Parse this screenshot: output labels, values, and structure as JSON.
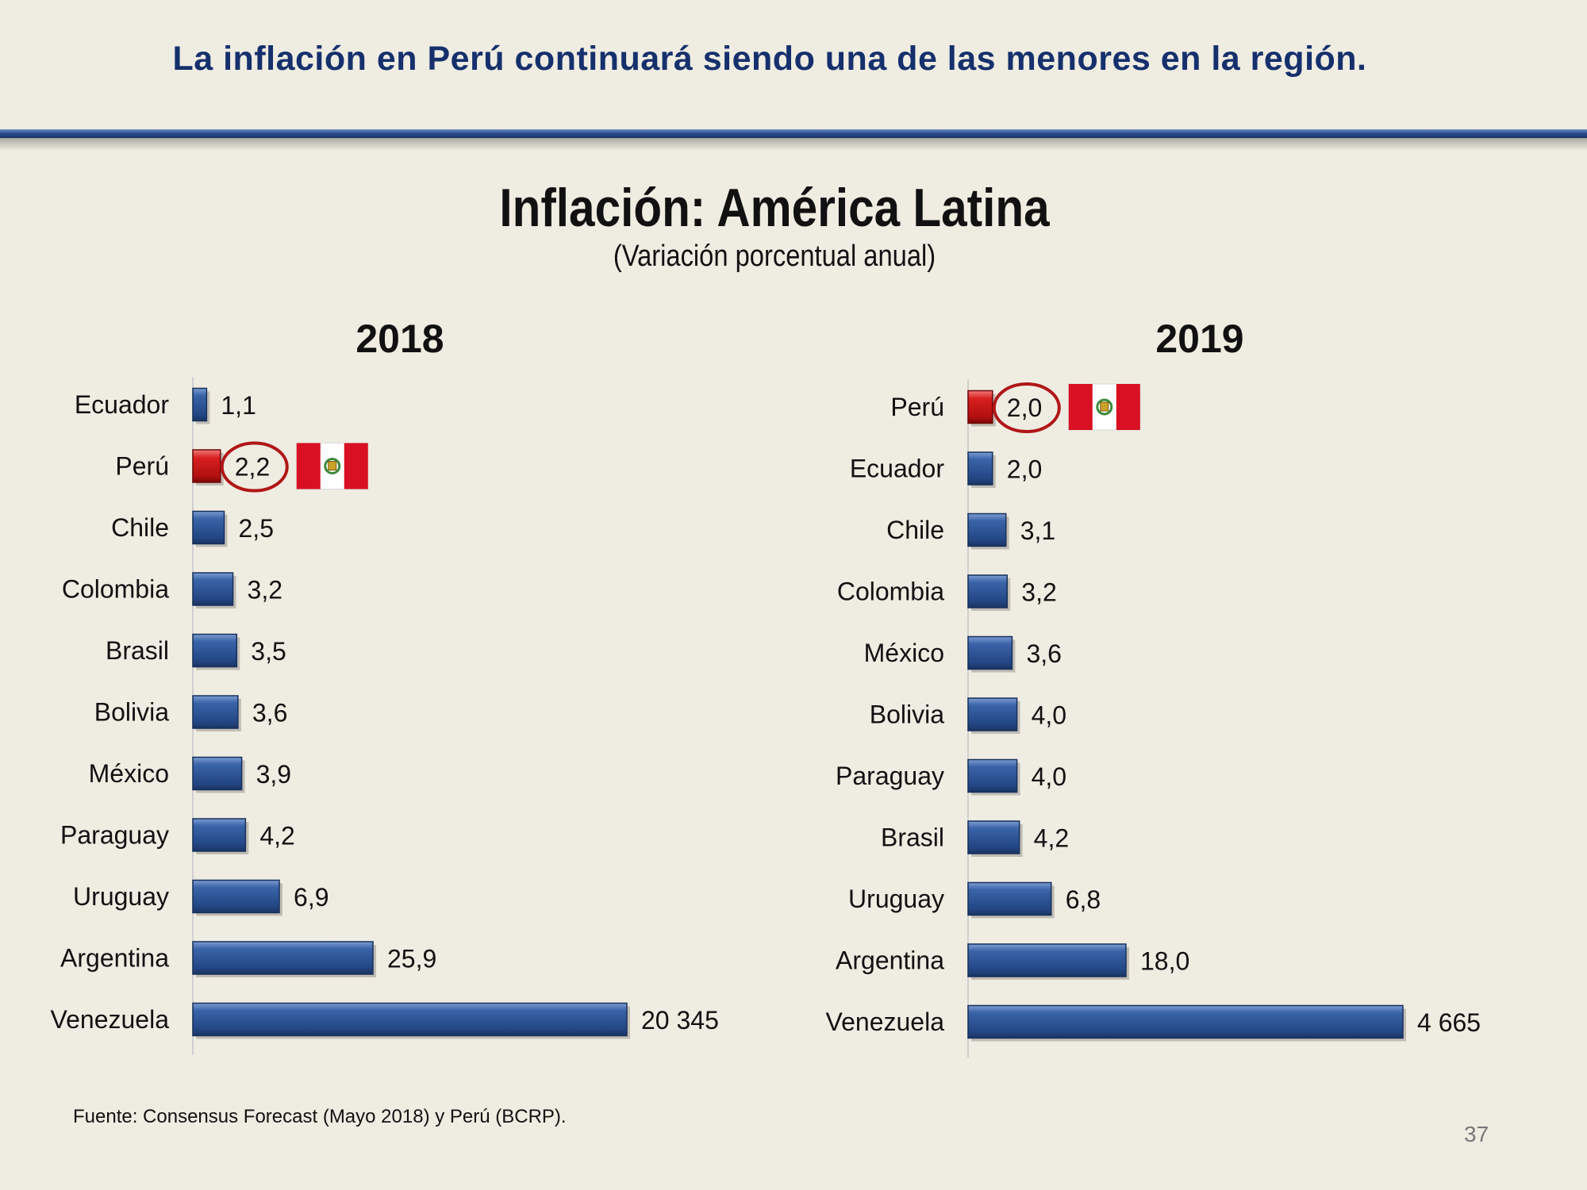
{
  "slide": {
    "headline": "La inflación en Perú continuará siendo una de las menores en la región.",
    "source": "Fuente: Consensus Forecast (Mayo 2018) y Perú (BCRP).",
    "page_number": "37"
  },
  "chart_data": {
    "type": "bar",
    "orientation": "horizontal",
    "title": "Inflación: América Latina",
    "subtitle": "(Variación porcentual anual)",
    "note": "Axis break: Venezuela and Argentina bars are not drawn to scale",
    "highlight_color": "#cc1c1c",
    "bar_color": "#2a5090",
    "panels": [
      {
        "title": "2018",
        "categories": [
          "Ecuador",
          "Perú",
          "Chile",
          "Colombia",
          "Brasil",
          "Bolivia",
          "México",
          "Paraguay",
          "Uruguay",
          "Argentina",
          "Venezuela"
        ],
        "values": [
          1.1,
          2.2,
          2.5,
          3.2,
          3.5,
          3.6,
          3.9,
          4.2,
          6.9,
          25.9,
          20345
        ],
        "labels": [
          "1,1",
          "2,2",
          "2,5",
          "3,2",
          "3,5",
          "3,6",
          "3,9",
          "4,2",
          "6,9",
          "25,9",
          "20 345"
        ],
        "highlight": "Perú"
      },
      {
        "title": "2019",
        "categories": [
          "Perú",
          "Ecuador",
          "Chile",
          "Colombia",
          "México",
          "Bolivia",
          "Paraguay",
          "Brasil",
          "Uruguay",
          "Argentina",
          "Venezuela"
        ],
        "values": [
          2.0,
          2.0,
          3.1,
          3.2,
          3.6,
          4.0,
          4.0,
          4.2,
          6.8,
          18.0,
          4665
        ],
        "labels": [
          "2,0",
          "2,0",
          "3,1",
          "3,2",
          "3,6",
          "4,0",
          "4,0",
          "4,2",
          "6,8",
          "18,0",
          "4 665"
        ],
        "highlight": "Perú"
      }
    ]
  }
}
